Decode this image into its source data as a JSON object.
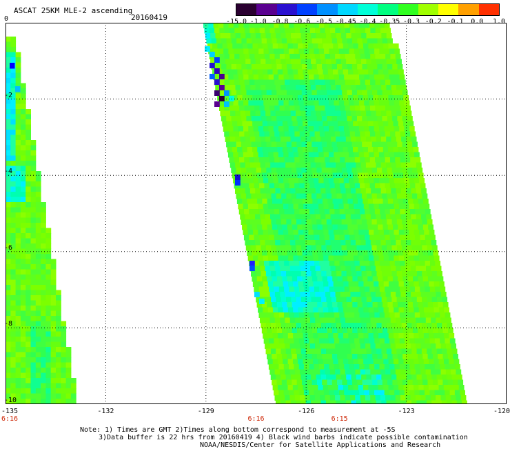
{
  "title": "ASCAT 25KM MLE-2 ascending",
  "date": "20160419",
  "colorbar": {
    "labels": [
      "-15.0",
      "-1.0",
      "-0.8",
      "-0.6",
      "-0.5",
      "-0.45",
      "-0.4",
      "-0.35",
      "-0.3",
      "-0.2",
      "-0.1",
      "0.0",
      "1.0"
    ],
    "colors": [
      "#2a0030",
      "#5a0090",
      "#2a10d0",
      "#0040ff",
      "#0090ff",
      "#00d8ff",
      "#00ffd8",
      "#00ff80",
      "#30ff20",
      "#a0ff00",
      "#ffff00",
      "#ffa000",
      "#ff3000"
    ]
  },
  "map": {
    "type": "heatmap",
    "lon_range": [
      -135,
      -120
    ],
    "lat_range": [
      -10,
      0
    ],
    "x_ticks": [
      "-135",
      "-132",
      "-129",
      "-126",
      "-123",
      "-120"
    ],
    "y_ticks": [
      "0",
      "-2",
      "-4",
      "-6",
      "-8",
      "-10"
    ],
    "grid": true,
    "time_labels": [
      {
        "lon": -135,
        "text": "6:16"
      },
      {
        "lon": -127.5,
        "text": "6:16"
      },
      {
        "lon": -125.0,
        "text": "6:15"
      }
    ]
  },
  "notes": {
    "line1": "Note: 1) Times are GMT 2)Times along bottom correspond to measurement at -5S",
    "line2": "3)Data buffer is 22 hrs from 20160419 4) Black wind barbs indicate possible contamination",
    "line3": "NOAA/NESDIS/Center for Satellite Applications and Research"
  }
}
